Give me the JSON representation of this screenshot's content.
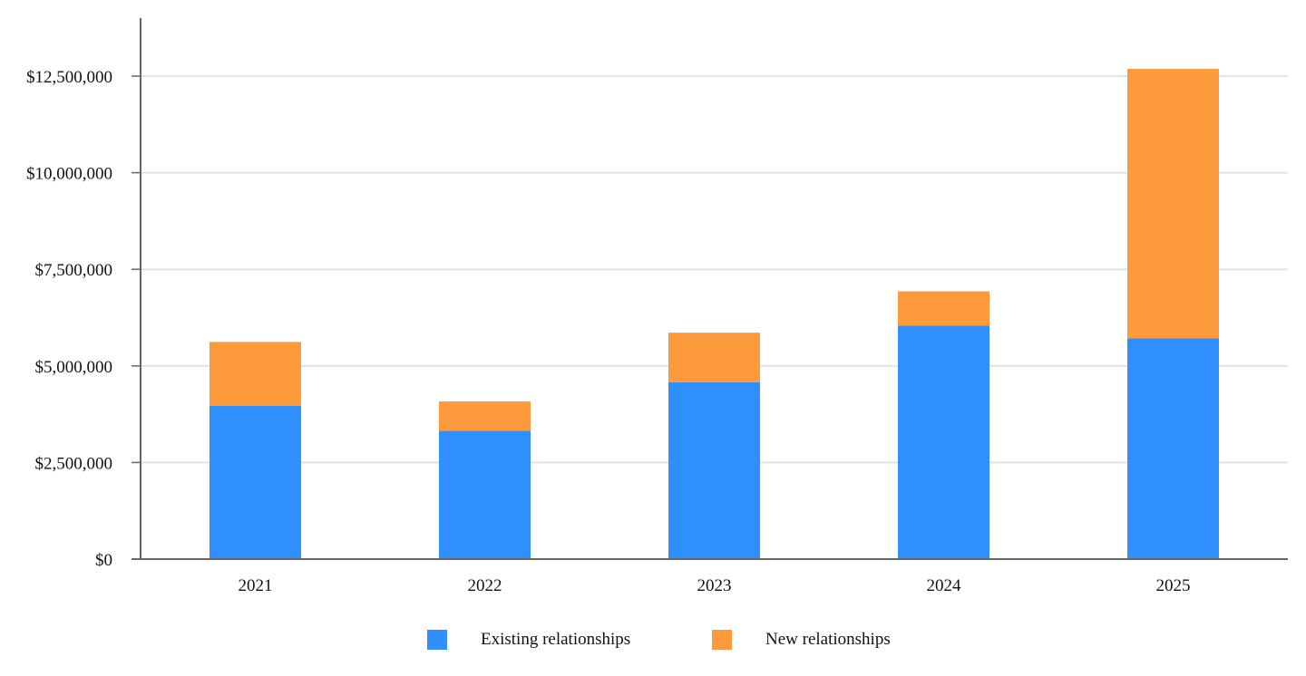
{
  "chart_data": {
    "type": "bar",
    "stacked": true,
    "categories": [
      "2021",
      "2022",
      "2023",
      "2024",
      "2025"
    ],
    "series": [
      {
        "name": "Existing relationships",
        "color": "#2e8ffd",
        "values": [
          3970000,
          3320000,
          4580000,
          6040000,
          5710000
        ]
      },
      {
        "name": "New relationships",
        "color": "#fd9a3c",
        "values": [
          1650000,
          760000,
          1280000,
          890000,
          6980000
        ]
      }
    ],
    "ylim": [
      0,
      14000000
    ],
    "yticks": [
      {
        "value": 0,
        "label": "$0"
      },
      {
        "value": 2500000,
        "label": "$2,500,000"
      },
      {
        "value": 5000000,
        "label": "$5,000,000"
      },
      {
        "value": 7500000,
        "label": "$7,500,000"
      },
      {
        "value": 10000000,
        "label": "$10,000,000"
      },
      {
        "value": 12500000,
        "label": "$12,500,000"
      }
    ],
    "title": "",
    "xlabel": "",
    "ylabel": "",
    "grid": true,
    "legend_position": "bottom-center"
  }
}
